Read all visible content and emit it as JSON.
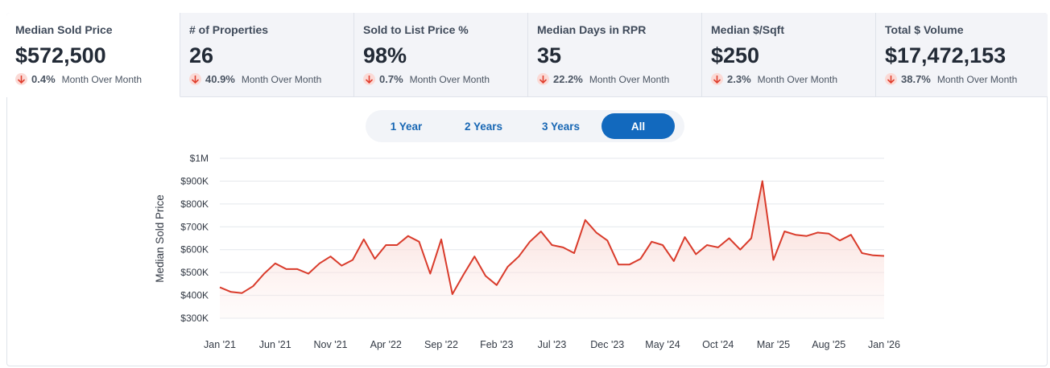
{
  "metrics": [
    {
      "label": "Median Sold Price",
      "value": "$572,500",
      "change": "0.4%",
      "change_label": "Month Over Month",
      "direction": "down",
      "active": true
    },
    {
      "label": "# of Properties",
      "value": "26",
      "change": "40.9%",
      "change_label": "Month Over Month",
      "direction": "down",
      "active": false
    },
    {
      "label": "Sold to List Price %",
      "value": "98%",
      "change": "0.7%",
      "change_label": "Month Over Month",
      "direction": "down",
      "active": false
    },
    {
      "label": "Median Days in RPR",
      "value": "35",
      "change": "22.2%",
      "change_label": "Month Over Month",
      "direction": "down",
      "active": false
    },
    {
      "label": "Median $/Sqft",
      "value": "$250",
      "change": "2.3%",
      "change_label": "Month Over Month",
      "direction": "down",
      "active": false
    },
    {
      "label": "Total $ Volume",
      "value": "$17,472,153",
      "change": "38.7%",
      "change_label": "Month Over Month",
      "direction": "down",
      "active": false
    }
  ],
  "range": {
    "options": [
      "1 Year",
      "2 Years",
      "3 Years",
      "All"
    ],
    "selected": "All"
  },
  "colors": {
    "line": "#d93b2b",
    "area_top": "#f6c7c0",
    "accent": "#1269be",
    "arrow": "#e0402f",
    "arrow_bg": "#fbdad6"
  },
  "chart_data": {
    "type": "area",
    "title": "",
    "xlabel": "",
    "ylabel": "Median Sold Price",
    "ylim": [
      300000,
      1000000
    ],
    "yticks": [
      {
        "value": 300000,
        "label": "$300K"
      },
      {
        "value": 400000,
        "label": "$400K"
      },
      {
        "value": 500000,
        "label": "$500K"
      },
      {
        "value": 600000,
        "label": "$600K"
      },
      {
        "value": 700000,
        "label": "$700K"
      },
      {
        "value": 800000,
        "label": "$800K"
      },
      {
        "value": 900000,
        "label": "$900K"
      },
      {
        "value": 1000000,
        "label": "$1M"
      }
    ],
    "xticks": [
      {
        "index": 0,
        "label": "Jan '21"
      },
      {
        "index": 5,
        "label": "Jun '21"
      },
      {
        "index": 10,
        "label": "Nov '21"
      },
      {
        "index": 15,
        "label": "Apr '22"
      },
      {
        "index": 20,
        "label": "Sep '22"
      },
      {
        "index": 25,
        "label": "Feb '23"
      },
      {
        "index": 30,
        "label": "Jul '23"
      },
      {
        "index": 35,
        "label": "Dec '23"
      },
      {
        "index": 40,
        "label": "May '24"
      },
      {
        "index": 45,
        "label": "Oct '24"
      },
      {
        "index": 50,
        "label": "Mar '25"
      },
      {
        "index": 55,
        "label": "Aug '25"
      },
      {
        "index": 60,
        "label": "Jan '26"
      }
    ],
    "series": [
      {
        "name": "Median Sold Price",
        "values": [
          435000,
          415000,
          410000,
          440000,
          495000,
          540000,
          515000,
          515000,
          495000,
          540000,
          570000,
          530000,
          555000,
          645000,
          560000,
          620000,
          620000,
          660000,
          635000,
          495000,
          645000,
          405000,
          490000,
          570000,
          485000,
          445000,
          525000,
          570000,
          635000,
          680000,
          620000,
          610000,
          585000,
          730000,
          675000,
          640000,
          535000,
          535000,
          560000,
          635000,
          620000,
          550000,
          655000,
          580000,
          620000,
          610000,
          650000,
          600000,
          650000,
          900000,
          555000,
          680000,
          665000,
          660000,
          675000,
          670000,
          640000,
          665000,
          585000,
          575000,
          572500
        ]
      }
    ]
  }
}
